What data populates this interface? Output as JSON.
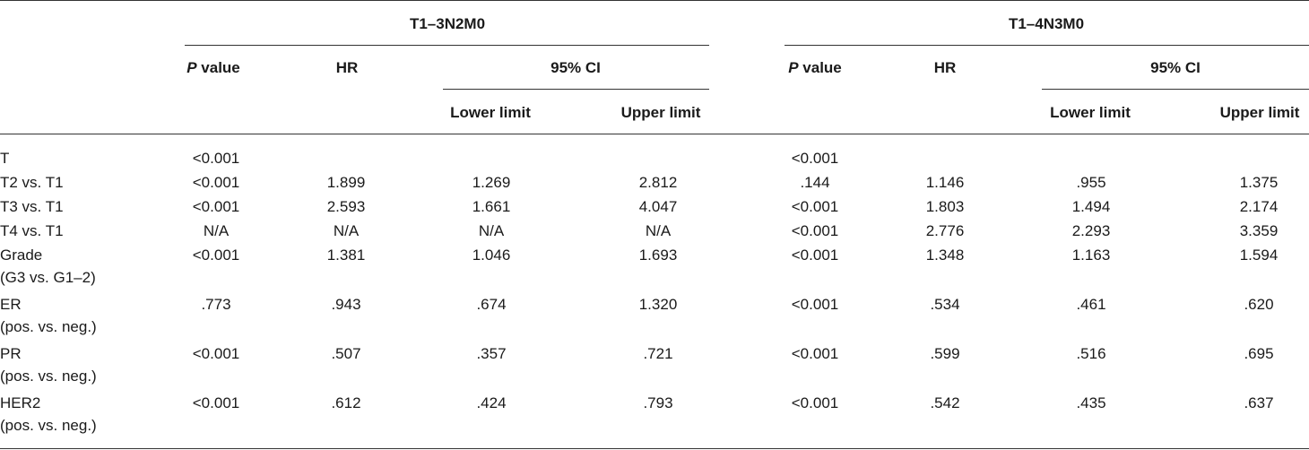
{
  "groups": [
    "T1–3N2M0",
    "T1–4N3M0"
  ],
  "header": {
    "p_italic": "P",
    "p_rest": " value",
    "hr": "HR",
    "ci": "95% CI",
    "lower": "Lower limit",
    "upper": "Upper limit"
  },
  "rows": [
    {
      "label": "T",
      "sub": "",
      "v": [
        "<0.001",
        "",
        "",
        "",
        "<0.001",
        "",
        "",
        ""
      ]
    },
    {
      "label": "T2 vs. T1",
      "sub": "",
      "v": [
        "<0.001",
        "1.899",
        "1.269",
        "2.812",
        ".144",
        "1.146",
        ".955",
        "1.375"
      ]
    },
    {
      "label": "T3 vs. T1",
      "sub": "",
      "v": [
        "<0.001",
        "2.593",
        "1.661",
        "4.047",
        "<0.001",
        "1.803",
        "1.494",
        "2.174"
      ]
    },
    {
      "label": "T4 vs. T1",
      "sub": "",
      "v": [
        "N/A",
        "N/A",
        "N/A",
        "N/A",
        "<0.001",
        "2.776",
        "2.293",
        "3.359"
      ]
    },
    {
      "label": "Grade",
      "sub": "(G3 vs. G1–2)",
      "v": [
        "<0.001",
        "1.381",
        "1.046",
        "1.693",
        "<0.001",
        "1.348",
        "1.163",
        "1.594"
      ]
    },
    {
      "label": "ER",
      "sub": "(pos. vs. neg.)",
      "v": [
        ".773",
        ".943",
        ".674",
        "1.320",
        "<0.001",
        ".534",
        ".461",
        ".620"
      ]
    },
    {
      "label": "PR",
      "sub": "(pos. vs. neg.)",
      "v": [
        "<0.001",
        ".507",
        ".357",
        ".721",
        "<0.001",
        ".599",
        ".516",
        ".695"
      ]
    },
    {
      "label": "HER2",
      "sub": "(pos. vs. neg.)",
      "v": [
        "<0.001",
        ".612",
        ".424",
        ".793",
        "<0.001",
        ".542",
        ".435",
        ".637"
      ]
    }
  ]
}
